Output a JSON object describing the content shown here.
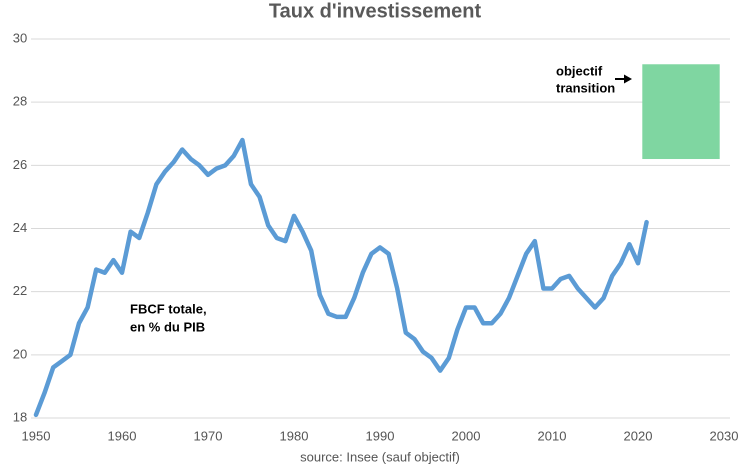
{
  "chart_data": {
    "type": "line",
    "title": "Taux d'investissement",
    "x": [
      1950,
      1951,
      1952,
      1953,
      1954,
      1955,
      1956,
      1957,
      1958,
      1959,
      1960,
      1961,
      1962,
      1963,
      1964,
      1965,
      1966,
      1967,
      1968,
      1969,
      1970,
      1971,
      1972,
      1973,
      1974,
      1975,
      1976,
      1977,
      1978,
      1979,
      1980,
      1981,
      1982,
      1983,
      1984,
      1985,
      1986,
      1987,
      1988,
      1989,
      1990,
      1991,
      1992,
      1993,
      1994,
      1995,
      1996,
      1997,
      1998,
      1999,
      2000,
      2001,
      2002,
      2003,
      2004,
      2005,
      2006,
      2007,
      2008,
      2009,
      2010,
      2011,
      2012,
      2013,
      2014,
      2015,
      2016,
      2017,
      2018,
      2019,
      2020,
      2021
    ],
    "series": [
      {
        "name": "FBCF totale, en % du PIB",
        "color": "#5b9bd5",
        "values": [
          18.1,
          18.8,
          19.6,
          19.8,
          20.0,
          21.0,
          21.5,
          22.7,
          22.6,
          23.0,
          22.6,
          23.9,
          23.7,
          24.5,
          25.4,
          25.8,
          26.1,
          26.5,
          26.2,
          26.0,
          25.7,
          25.9,
          26.0,
          26.3,
          26.8,
          25.4,
          25.0,
          24.1,
          23.7,
          23.6,
          24.4,
          23.9,
          23.3,
          21.9,
          21.3,
          21.2,
          21.2,
          21.8,
          22.6,
          23.2,
          23.4,
          23.2,
          22.1,
          20.7,
          20.5,
          20.1,
          19.9,
          19.5,
          19.9,
          20.8,
          21.5,
          21.5,
          21.0,
          21.0,
          21.3,
          21.8,
          22.5,
          23.2,
          23.6,
          22.1,
          22.1,
          22.4,
          22.5,
          22.1,
          21.8,
          21.5,
          21.8,
          22.5,
          22.9,
          23.5,
          22.9,
          24.2
        ]
      }
    ],
    "target": {
      "lines": [
        "objectif",
        "transition"
      ],
      "x": [
        2020.5,
        2029.5
      ],
      "y": [
        26.2,
        29.2
      ],
      "color": "#7fd6a1"
    },
    "annotation": [
      "FBCF totale,",
      "en % du PIB"
    ],
    "source": "source: Insee (sauf objectif)",
    "xlim": [
      1950,
      2030
    ],
    "xticks": [
      1950,
      1960,
      1970,
      1980,
      1990,
      2000,
      2010,
      2020,
      2030
    ],
    "ylim": [
      18,
      30
    ],
    "yticks": [
      18,
      20,
      22,
      24,
      26,
      28,
      30
    ],
    "grid": true
  }
}
